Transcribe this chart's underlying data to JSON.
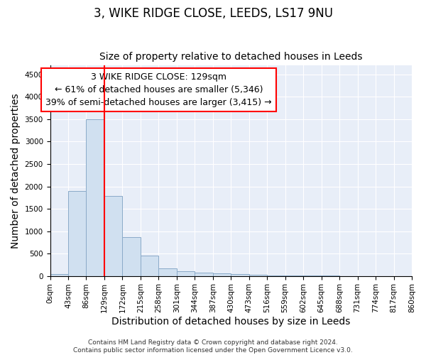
{
  "title": "3, WIKE RIDGE CLOSE, LEEDS, LS17 9NU",
  "subtitle": "Size of property relative to detached houses in Leeds",
  "xlabel": "Distribution of detached houses by size in Leeds",
  "ylabel": "Number of detached properties",
  "bar_color": "#d0e0f0",
  "bar_edge_color": "#8aaac8",
  "vline_x": 129,
  "vline_color": "red",
  "annotation_line1": "3 WIKE RIDGE CLOSE: 129sqm",
  "annotation_line2": "← 61% of detached houses are smaller (5,346)",
  "annotation_line3": "39% of semi-detached houses are larger (3,415) →",
  "annotation_box_color": "white",
  "annotation_box_edge": "red",
  "footer_text": "Contains HM Land Registry data © Crown copyright and database right 2024.\nContains public sector information licensed under the Open Government Licence v3.0.",
  "bin_edges": [
    0,
    43,
    86,
    129,
    172,
    215,
    258,
    301,
    344,
    387,
    430,
    473,
    516,
    559,
    602,
    645,
    688,
    731,
    774,
    817,
    860
  ],
  "bar_heights": [
    40,
    1900,
    3500,
    1780,
    860,
    460,
    175,
    100,
    65,
    55,
    35,
    20,
    8,
    4,
    3,
    2,
    1,
    1,
    1,
    1
  ],
  "ylim": [
    0,
    4700
  ],
  "yticks": [
    0,
    500,
    1000,
    1500,
    2000,
    2500,
    3000,
    3500,
    4000,
    4500
  ],
  "background_color": "#e8eef8",
  "grid_color": "white",
  "title_fontsize": 12,
  "subtitle_fontsize": 10,
  "tick_fontsize": 7.5,
  "label_fontsize": 10,
  "footer_fontsize": 6.5
}
